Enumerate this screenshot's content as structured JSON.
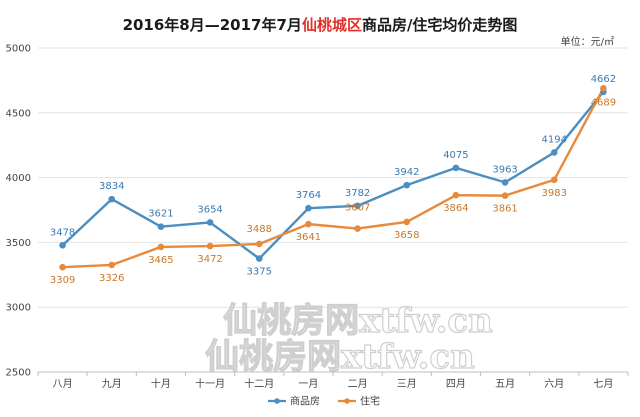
{
  "chart_data": {
    "type": "line",
    "title": {
      "prefix": "2016年8月—2017年7月",
      "highlight": "仙桃城区",
      "suffix": "商品房/住宅均价走势图",
      "highlight_color": "#e0302a"
    },
    "unit_label": "单位：元/㎡",
    "categories": [
      "八月",
      "九月",
      "十月",
      "十一月",
      "十二月",
      "一月",
      "二月",
      "三月",
      "四月",
      "五月",
      "六月",
      "七月"
    ],
    "ylim": [
      2500,
      5000
    ],
    "yticks": [
      2500,
      3000,
      3500,
      4000,
      4500,
      5000
    ],
    "grid": true,
    "legend_position": "bottom",
    "series": [
      {
        "name": "商品房",
        "color": "#4a8ec2",
        "label_color": "#3a7ab3",
        "values": [
          3478,
          3834,
          3621,
          3654,
          3375,
          3764,
          3782,
          3942,
          4075,
          3963,
          4194,
          4662
        ]
      },
      {
        "name": "住宅",
        "color": "#e8893c",
        "label_color": "#c9772c",
        "values": [
          3309,
          3326,
          3465,
          3472,
          3488,
          3641,
          3607,
          3658,
          3864,
          3861,
          3983,
          4689
        ]
      }
    ],
    "watermark": "仙桃房网xtfw.cn"
  }
}
